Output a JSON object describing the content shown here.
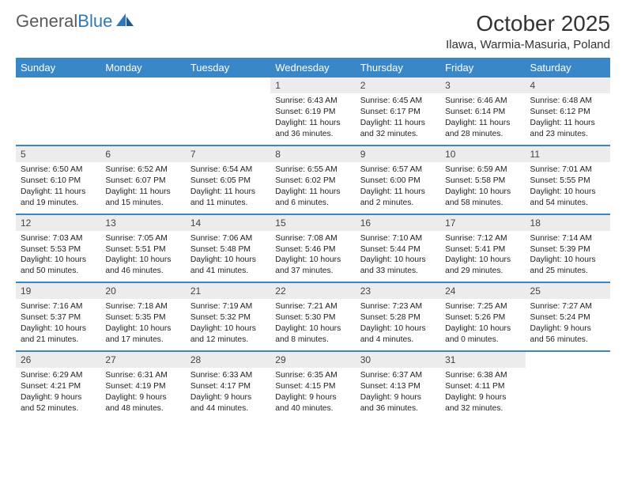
{
  "logo": {
    "word1": "General",
    "word2": "Blue"
  },
  "title": "October 2025",
  "location": "Ilawa, Warmia-Masuria, Poland",
  "header_bg": "#3a87c7",
  "daynum_bg": "#ececec",
  "text_color": "#222222",
  "days": [
    "Sunday",
    "Monday",
    "Tuesday",
    "Wednesday",
    "Thursday",
    "Friday",
    "Saturday"
  ],
  "weeks": [
    [
      null,
      null,
      null,
      {
        "n": "1",
        "sunrise": "6:43 AM",
        "sunset": "6:19 PM",
        "daylight": "11 hours and 36 minutes."
      },
      {
        "n": "2",
        "sunrise": "6:45 AM",
        "sunset": "6:17 PM",
        "daylight": "11 hours and 32 minutes."
      },
      {
        "n": "3",
        "sunrise": "6:46 AM",
        "sunset": "6:14 PM",
        "daylight": "11 hours and 28 minutes."
      },
      {
        "n": "4",
        "sunrise": "6:48 AM",
        "sunset": "6:12 PM",
        "daylight": "11 hours and 23 minutes."
      }
    ],
    [
      {
        "n": "5",
        "sunrise": "6:50 AM",
        "sunset": "6:10 PM",
        "daylight": "11 hours and 19 minutes."
      },
      {
        "n": "6",
        "sunrise": "6:52 AM",
        "sunset": "6:07 PM",
        "daylight": "11 hours and 15 minutes."
      },
      {
        "n": "7",
        "sunrise": "6:54 AM",
        "sunset": "6:05 PM",
        "daylight": "11 hours and 11 minutes."
      },
      {
        "n": "8",
        "sunrise": "6:55 AM",
        "sunset": "6:02 PM",
        "daylight": "11 hours and 6 minutes."
      },
      {
        "n": "9",
        "sunrise": "6:57 AM",
        "sunset": "6:00 PM",
        "daylight": "11 hours and 2 minutes."
      },
      {
        "n": "10",
        "sunrise": "6:59 AM",
        "sunset": "5:58 PM",
        "daylight": "10 hours and 58 minutes."
      },
      {
        "n": "11",
        "sunrise": "7:01 AM",
        "sunset": "5:55 PM",
        "daylight": "10 hours and 54 minutes."
      }
    ],
    [
      {
        "n": "12",
        "sunrise": "7:03 AM",
        "sunset": "5:53 PM",
        "daylight": "10 hours and 50 minutes."
      },
      {
        "n": "13",
        "sunrise": "7:05 AM",
        "sunset": "5:51 PM",
        "daylight": "10 hours and 46 minutes."
      },
      {
        "n": "14",
        "sunrise": "7:06 AM",
        "sunset": "5:48 PM",
        "daylight": "10 hours and 41 minutes."
      },
      {
        "n": "15",
        "sunrise": "7:08 AM",
        "sunset": "5:46 PM",
        "daylight": "10 hours and 37 minutes."
      },
      {
        "n": "16",
        "sunrise": "7:10 AM",
        "sunset": "5:44 PM",
        "daylight": "10 hours and 33 minutes."
      },
      {
        "n": "17",
        "sunrise": "7:12 AM",
        "sunset": "5:41 PM",
        "daylight": "10 hours and 29 minutes."
      },
      {
        "n": "18",
        "sunrise": "7:14 AM",
        "sunset": "5:39 PM",
        "daylight": "10 hours and 25 minutes."
      }
    ],
    [
      {
        "n": "19",
        "sunrise": "7:16 AM",
        "sunset": "5:37 PM",
        "daylight": "10 hours and 21 minutes."
      },
      {
        "n": "20",
        "sunrise": "7:18 AM",
        "sunset": "5:35 PM",
        "daylight": "10 hours and 17 minutes."
      },
      {
        "n": "21",
        "sunrise": "7:19 AM",
        "sunset": "5:32 PM",
        "daylight": "10 hours and 12 minutes."
      },
      {
        "n": "22",
        "sunrise": "7:21 AM",
        "sunset": "5:30 PM",
        "daylight": "10 hours and 8 minutes."
      },
      {
        "n": "23",
        "sunrise": "7:23 AM",
        "sunset": "5:28 PM",
        "daylight": "10 hours and 4 minutes."
      },
      {
        "n": "24",
        "sunrise": "7:25 AM",
        "sunset": "5:26 PM",
        "daylight": "10 hours and 0 minutes."
      },
      {
        "n": "25",
        "sunrise": "7:27 AM",
        "sunset": "5:24 PM",
        "daylight": "9 hours and 56 minutes."
      }
    ],
    [
      {
        "n": "26",
        "sunrise": "6:29 AM",
        "sunset": "4:21 PM",
        "daylight": "9 hours and 52 minutes."
      },
      {
        "n": "27",
        "sunrise": "6:31 AM",
        "sunset": "4:19 PM",
        "daylight": "9 hours and 48 minutes."
      },
      {
        "n": "28",
        "sunrise": "6:33 AM",
        "sunset": "4:17 PM",
        "daylight": "9 hours and 44 minutes."
      },
      {
        "n": "29",
        "sunrise": "6:35 AM",
        "sunset": "4:15 PM",
        "daylight": "9 hours and 40 minutes."
      },
      {
        "n": "30",
        "sunrise": "6:37 AM",
        "sunset": "4:13 PM",
        "daylight": "9 hours and 36 minutes."
      },
      {
        "n": "31",
        "sunrise": "6:38 AM",
        "sunset": "4:11 PM",
        "daylight": "9 hours and 32 minutes."
      },
      null
    ]
  ],
  "labels": {
    "sunrise": "Sunrise:",
    "sunset": "Sunset:",
    "daylight": "Daylight:"
  }
}
